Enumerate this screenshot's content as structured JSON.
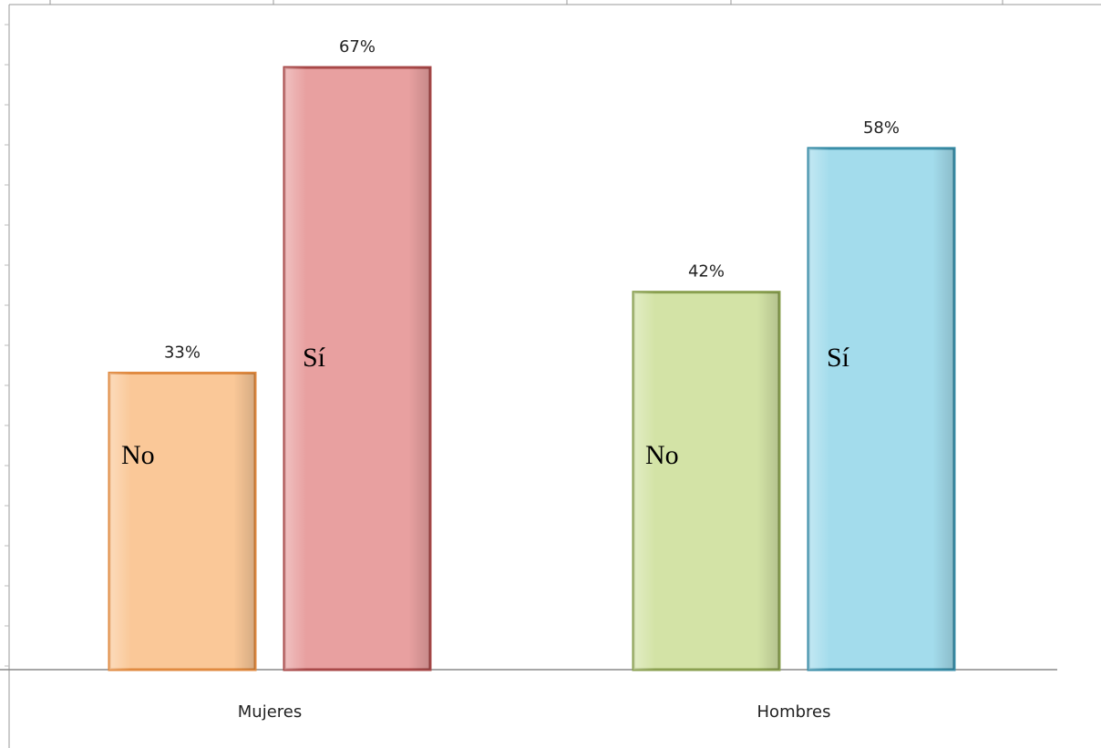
{
  "chart_data": {
    "type": "bar",
    "categories": [
      "Mujeres",
      "Hombres"
    ],
    "series": [
      {
        "name": "No",
        "colors": [
          "#fac898",
          "#d3e3a6"
        ],
        "border_colors": [
          "#e08a40",
          "#8aa050"
        ],
        "values": [
          33,
          42
        ],
        "value_labels": [
          "33%",
          "42%"
        ]
      },
      {
        "name": "Sí",
        "colors": [
          "#e8a0a0",
          "#a3dcec"
        ],
        "border_colors": [
          "#a84848",
          "#3a8ea8"
        ],
        "values": [
          67,
          58
        ],
        "value_labels": [
          "67%",
          "58%"
        ]
      }
    ],
    "ylim": [
      0,
      74
    ],
    "grid": false
  }
}
